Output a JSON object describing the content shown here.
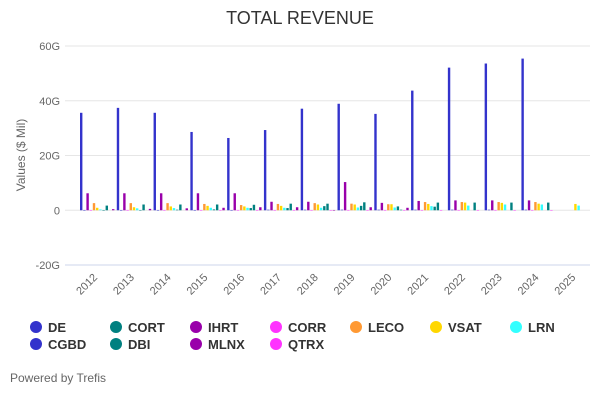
{
  "chart_data": {
    "type": "bar",
    "title": "TOTAL REVENUE",
    "ylabel": "Values ($ Mil)",
    "xlabel": "",
    "ylim": [
      -20,
      60
    ],
    "yticks": [
      "-20G",
      "0",
      "20G",
      "40G",
      "60G"
    ],
    "ytick_values": [
      -20,
      0,
      20,
      40,
      60
    ],
    "grid": true,
    "legend_position": "bottom",
    "categories": [
      "2012",
      "2013",
      "2014",
      "2015",
      "2016",
      "2017",
      "2018",
      "2019",
      "2020",
      "2021",
      "2022",
      "2023",
      "2024",
      "2025"
    ],
    "series": [
      {
        "name": "DE",
        "color": "#3333cc",
        "values": [
          35.6,
          37.4,
          35.6,
          28.6,
          26.4,
          29.3,
          37.1,
          38.9,
          35.2,
          43.7,
          52.1,
          53.6,
          55.4,
          null
        ]
      },
      {
        "name": "CGBD",
        "color": "#3333cc",
        "values": [
          0.1,
          0.1,
          0.1,
          0.1,
          0.1,
          0.2,
          0.2,
          0.2,
          0.2,
          0.2,
          0.2,
          0.2,
          0.2,
          null
        ]
      },
      {
        "name": "IHRT",
        "color": "#9900aa",
        "values": [
          6.2,
          6.2,
          6.2,
          6.2,
          6.2,
          3.1,
          3.1,
          10.3,
          2.7,
          3.4,
          3.6,
          3.6,
          3.6,
          null
        ]
      },
      {
        "name": "CORR",
        "color": "#ff33ff",
        "values": [
          0.1,
          0.1,
          0.1,
          0.1,
          0.1,
          0.1,
          0.1,
          0.1,
          0.1,
          0.1,
          0.1,
          0.1,
          0.1,
          null
        ]
      },
      {
        "name": "LECO",
        "color": "#ff9933",
        "values": [
          2.6,
          2.6,
          2.6,
          2.3,
          1.9,
          2.3,
          2.6,
          2.4,
          2.2,
          3.0,
          3.0,
          3.0,
          3.0,
          null
        ]
      },
      {
        "name": "VSAT",
        "color": "#ffd700",
        "values": [
          0.9,
          1.1,
          1.4,
          1.6,
          1.4,
          1.6,
          2.1,
          2.1,
          2.2,
          2.3,
          2.8,
          2.7,
          2.4,
          2.3
        ]
      },
      {
        "name": "LRN",
        "color": "#33ffff",
        "values": [
          0.3,
          0.7,
          0.8,
          0.9,
          0.9,
          0.9,
          0.9,
          1.0,
          1.0,
          1.5,
          1.7,
          2.1,
          2.1,
          1.7
        ]
      },
      {
        "name": "DBI",
        "color": "#008080",
        "values": [
          0.1,
          0.1,
          0.2,
          0.3,
          0.8,
          0.8,
          1.5,
          1.6,
          1.4,
          1.3,
          null,
          null,
          null,
          null
        ]
      },
      {
        "name": "CORT",
        "color": "#008080",
        "values": [
          1.7,
          2.1,
          2.1,
          2.1,
          2.0,
          2.4,
          2.4,
          2.9,
          0.2,
          2.8,
          2.8,
          2.8,
          2.8,
          null
        ]
      },
      {
        "name": "QTRX",
        "color": "#ff33ff",
        "values": [
          null,
          null,
          null,
          0.1,
          0.1,
          0.1,
          0.1,
          0.1,
          0.1,
          0.1,
          0.1,
          0.1,
          0.1,
          null
        ]
      },
      {
        "name": "MLNX",
        "color": "#9900aa",
        "values": [
          0.4,
          0.5,
          0.7,
          0.9,
          1.1,
          1.1,
          0.1,
          1.1,
          0.9,
          null,
          null,
          null,
          null,
          null
        ]
      }
    ]
  },
  "legend": [
    {
      "name": "DE",
      "color": "#3333cc"
    },
    {
      "name": "CGBD",
      "color": "#3333cc"
    },
    {
      "name": "CORT",
      "color": "#008080"
    },
    {
      "name": "DBI",
      "color": "#008080"
    },
    {
      "name": "IHRT",
      "color": "#9900aa"
    },
    {
      "name": "MLNX",
      "color": "#9900aa"
    },
    {
      "name": "CORR",
      "color": "#ff33ff"
    },
    {
      "name": "QTRX",
      "color": "#ff33ff"
    },
    {
      "name": "LECO",
      "color": "#ff9933"
    },
    {
      "name": "VSAT",
      "color": "#ffd700"
    },
    {
      "name": "LRN",
      "color": "#33ffff"
    }
  ],
  "credit": "Powered by Trefis"
}
